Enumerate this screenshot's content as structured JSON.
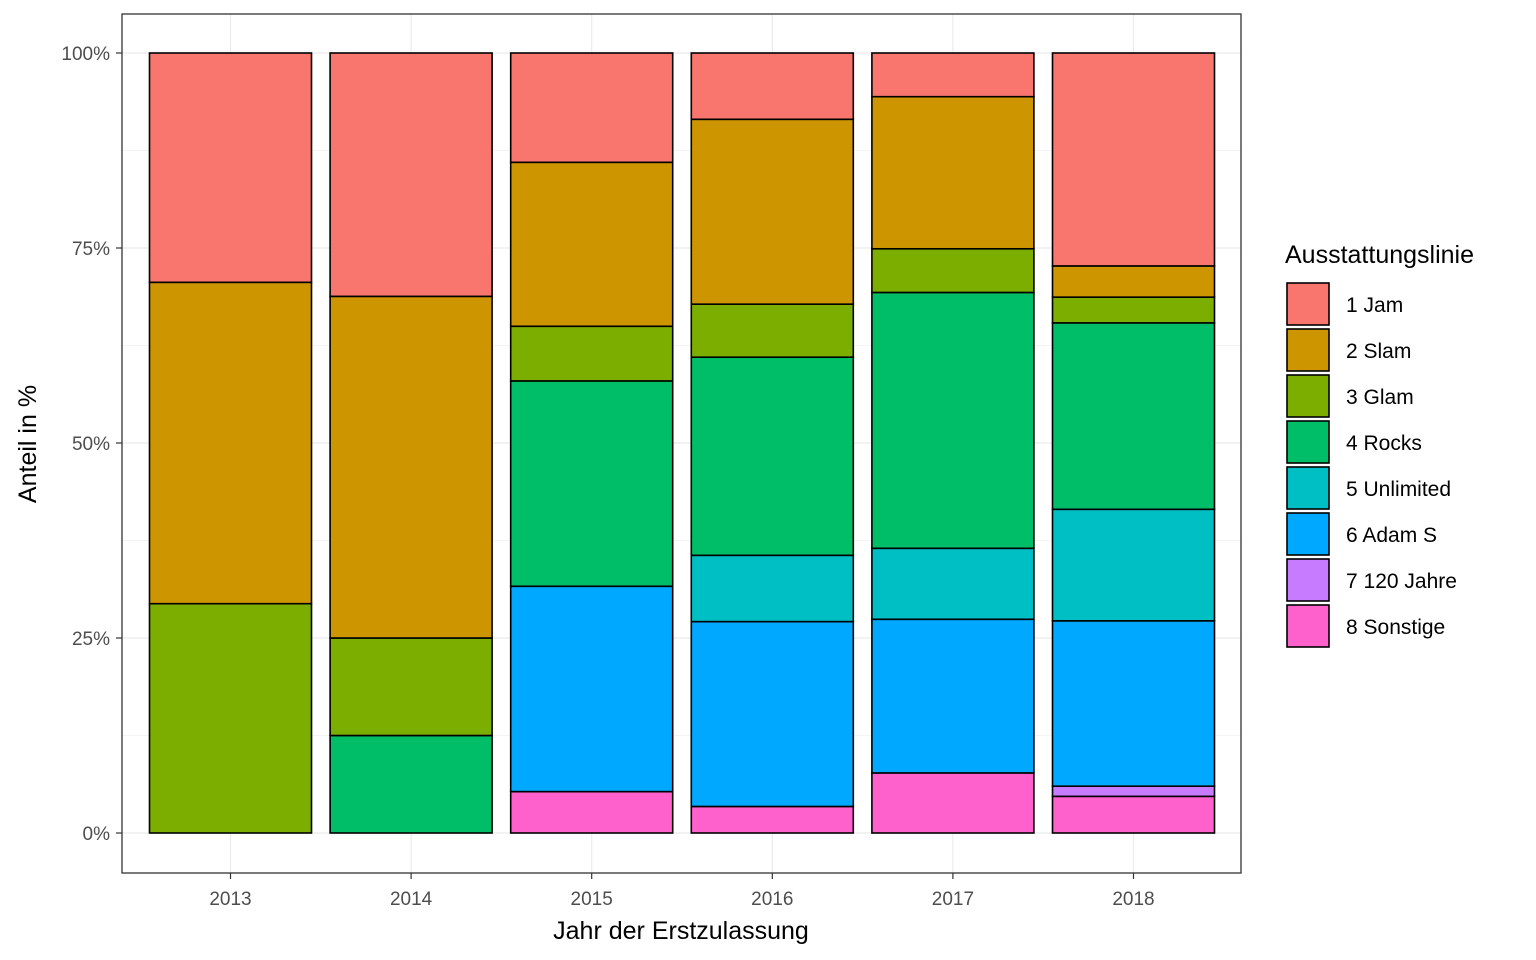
{
  "chart_data": {
    "type": "bar",
    "stacked": true,
    "normalized": true,
    "xlabel": "Jahr der Erstzulassung",
    "ylabel": "Anteil in %",
    "ylim": [
      0,
      100
    ],
    "y_ticks": [
      "0%",
      "25%",
      "50%",
      "75%",
      "100%"
    ],
    "y_tick_values": [
      0,
      25,
      50,
      75,
      100
    ],
    "grid": true,
    "legend_position": "right",
    "legend_title": "Ausstattungslinie",
    "categories": [
      "2013",
      "2014",
      "2015",
      "2016",
      "2017",
      "2018"
    ],
    "series": [
      {
        "name": "1 Jam",
        "color": "#F8766D",
        "values": [
          29.4,
          31.2,
          14.0,
          8.5,
          5.6,
          27.3
        ]
      },
      {
        "name": "2 Slam",
        "color": "#CD9600",
        "values": [
          41.2,
          43.8,
          21.0,
          23.7,
          19.5,
          4.0
        ]
      },
      {
        "name": "3 Glam",
        "color": "#7CAE00",
        "values": [
          29.4,
          12.5,
          7.0,
          6.8,
          5.6,
          3.3
        ]
      },
      {
        "name": "4 Rocks",
        "color": "#00BE67",
        "values": [
          0,
          12.5,
          26.3,
          25.4,
          32.8,
          23.9
        ]
      },
      {
        "name": "5 Unlimited",
        "color": "#00BFC4",
        "values": [
          0,
          0,
          0,
          8.5,
          9.1,
          14.3
        ]
      },
      {
        "name": "6 Adam S",
        "color": "#00A9FF",
        "values": [
          0,
          0,
          26.3,
          23.7,
          19.7,
          21.2
        ]
      },
      {
        "name": "7 120 Jahre",
        "color": "#C77CFF",
        "values": [
          0,
          0,
          0,
          0,
          0,
          1.3
        ]
      },
      {
        "name": "8 Sonstige",
        "color": "#FF61CC",
        "values": [
          0,
          0,
          5.3,
          3.4,
          7.7,
          4.7
        ]
      }
    ]
  }
}
